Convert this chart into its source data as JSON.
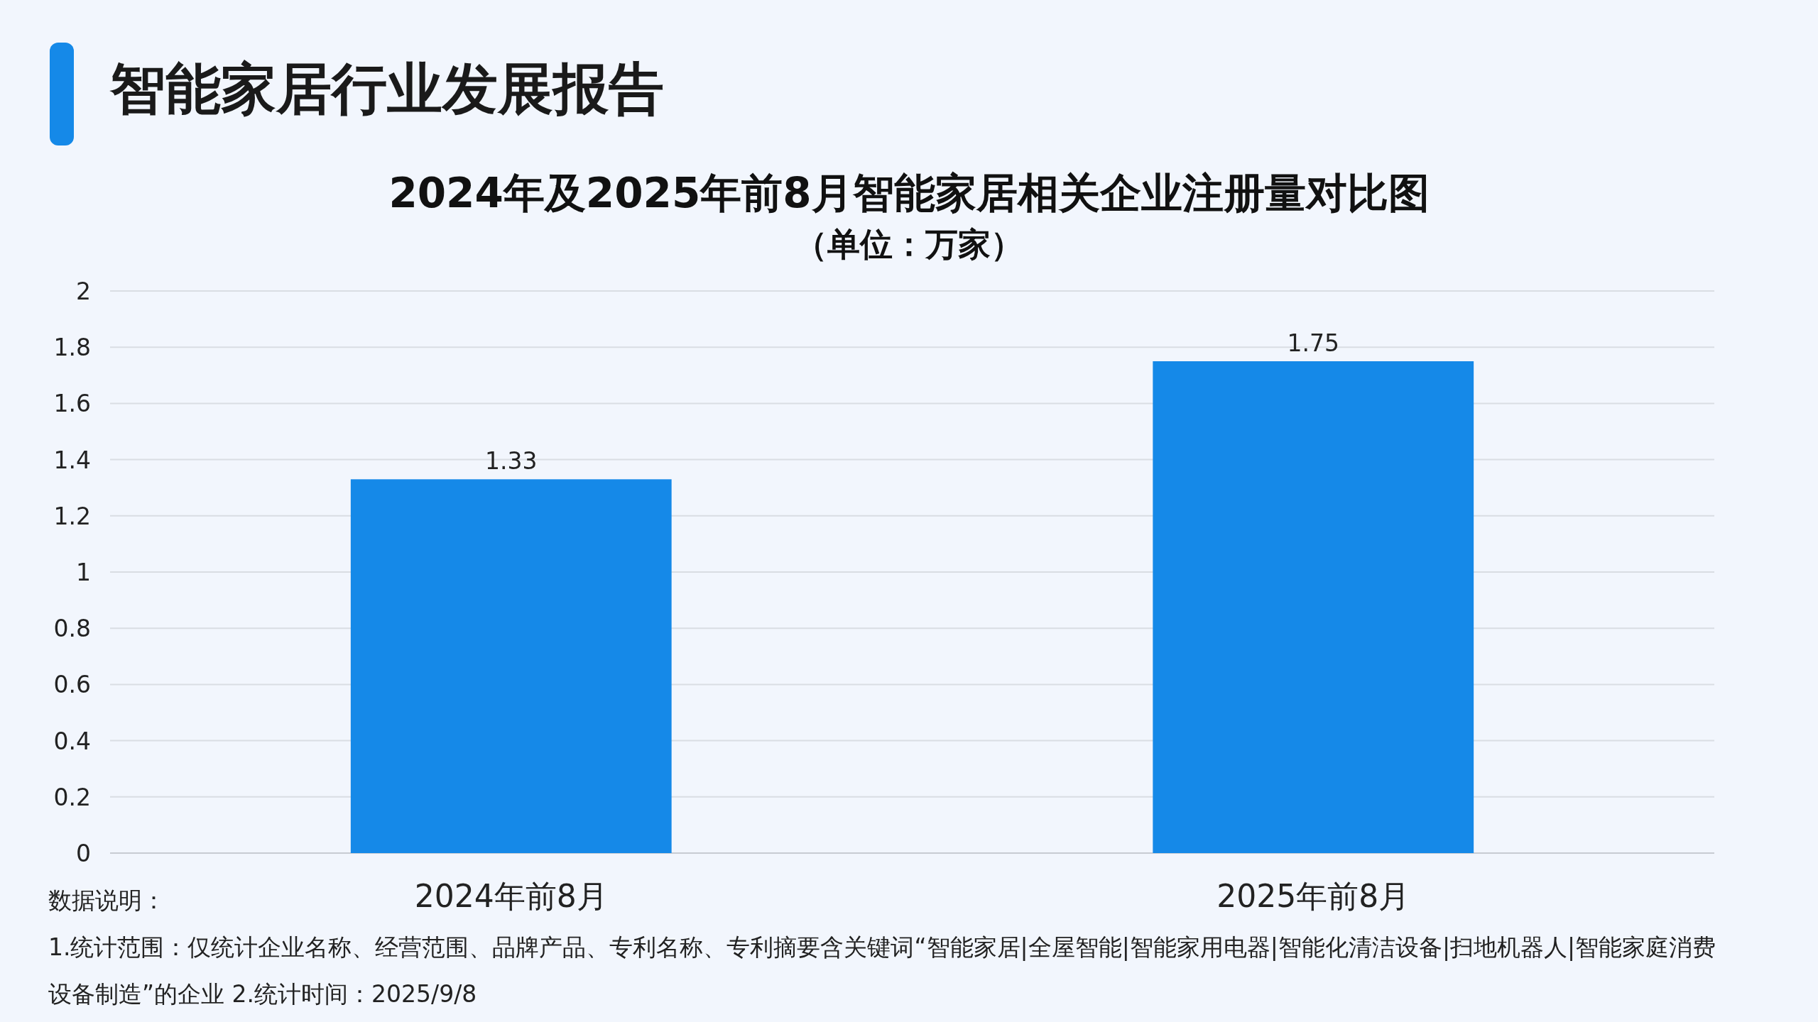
{
  "chart_data": {
    "type": "bar",
    "title": "2024年及2025年前8月智能家居相关企业注册量对比图",
    "subtitle": "（单位：万家）",
    "categories": [
      "2024年前8月",
      "2025年前8月"
    ],
    "values": [
      1.33,
      1.75
    ],
    "color": "#1589e8",
    "ylim": [
      0,
      2
    ],
    "yticks": [
      0,
      0.2,
      0.4,
      0.6,
      0.8,
      1,
      1.2,
      1.4,
      1.6,
      1.8,
      2
    ],
    "grid": "y",
    "data_labels": true,
    "annotations": [
      "智能家居行业发展报告",
      "数据说明：",
      "1.统计范围：仅统计企业名称、经营范围、品牌产品、专利名称、专利摘要含关键词“智能家居|全屋智能|智能家用电器|智能化清洁设备|扫地机器人|智能家庭消费设备制造”的企业 2.统计时间：2025/9/8"
    ]
  }
}
